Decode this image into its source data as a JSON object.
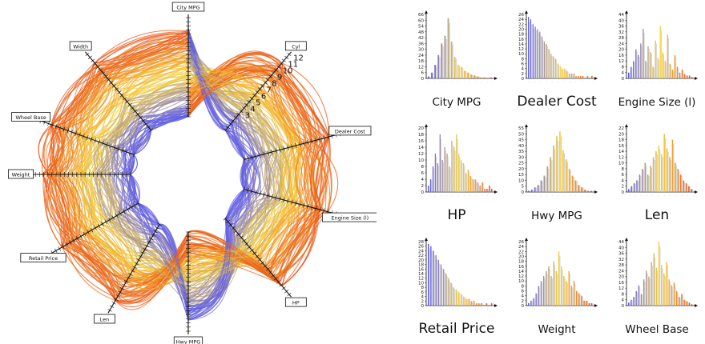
{
  "chart_data": [
    {
      "type": "radial-parallel-coordinates",
      "colors": {
        "low": "#5a5af0",
        "mid": "#f7d23a",
        "high": "#e84e18"
      },
      "axes": [
        {
          "name": "City MPG",
          "angle": -90,
          "ticks": []
        },
        {
          "name": "Cyl",
          "angle": -50,
          "ticks": [
            "3",
            "4",
            "5",
            "6",
            "7",
            "8",
            "9",
            "10",
            "11",
            "12"
          ]
        },
        {
          "name": "Dealer Cost",
          "angle": -15,
          "ticks": []
        },
        {
          "name": "Engine Size (l)",
          "angle": 15,
          "ticks": []
        },
        {
          "name": "HP",
          "angle": 50,
          "ticks": []
        },
        {
          "name": "Hwy MPG",
          "angle": 90,
          "ticks": []
        },
        {
          "name": "Len",
          "angle": 120,
          "ticks": []
        },
        {
          "name": "Retail Price",
          "angle": 150,
          "ticks": []
        },
        {
          "name": "Weight",
          "angle": 180,
          "ticks": []
        },
        {
          "name": "Width",
          "angle": 230,
          "ticks": []
        },
        {
          "name": "Wheel Base",
          "angle": 200,
          "ticks": []
        }
      ],
      "axis_box_labels": [
        "City MPG",
        "Cyl",
        "Dealer Cost",
        "Engine Size (l)",
        "HP",
        "Hwy MPG",
        "Len",
        "Retail Price",
        "Weight",
        "Width",
        "Wheel Base"
      ]
    },
    {
      "type": "histogram-grid",
      "panels": [
        {
          "title": "City MPG",
          "yticks": [
            "0",
            "6",
            "12",
            "18",
            "24",
            "30",
            "36",
            "42",
            "48",
            "54",
            "60",
            "66"
          ],
          "ymax": 66,
          "values": [
            2,
            6,
            14,
            24,
            36,
            44,
            62,
            38,
            22,
            14,
            12,
            8,
            6,
            4,
            3,
            2,
            1,
            1,
            0,
            1
          ]
        },
        {
          "title": "Dealer Cost",
          "yticks": [
            "0",
            "2",
            "4",
            "6",
            "8",
            "10",
            "12",
            "14",
            "16",
            "18",
            "20",
            "22",
            "24",
            "26"
          ],
          "ymax": 26,
          "values": [
            25,
            24,
            22,
            21,
            20,
            19,
            17,
            15,
            14,
            12,
            10,
            9,
            8,
            6,
            5,
            4,
            4,
            3,
            2,
            2,
            2,
            1,
            1,
            1,
            1,
            0,
            1,
            0,
            1
          ]
        },
        {
          "title": "Engine Size (l)",
          "yticks": [
            "0",
            "4",
            "8",
            "12",
            "16",
            "20",
            "24",
            "28",
            "32",
            "36",
            "40",
            "44"
          ],
          "ymax": 44,
          "values": [
            4,
            8,
            12,
            20,
            16,
            24,
            34,
            12,
            22,
            18,
            8,
            26,
            14,
            36,
            18,
            12,
            30,
            10,
            6,
            16,
            8,
            4,
            6,
            3,
            2,
            2,
            1
          ]
        },
        {
          "title": "HP",
          "yticks": [
            "0",
            "2",
            "4",
            "6",
            "8",
            "10",
            "12",
            "14",
            "16",
            "18",
            "20"
          ],
          "ymax": 20,
          "values": [
            2,
            4,
            8,
            12,
            9,
            18,
            10,
            14,
            12,
            8,
            16,
            14,
            18,
            12,
            10,
            9,
            6,
            7,
            5,
            4,
            4,
            3,
            2,
            3,
            1,
            1,
            2,
            1
          ]
        },
        {
          "title": "Hwy MPG",
          "yticks": [
            "0",
            "5",
            "10",
            "15",
            "20",
            "25",
            "30",
            "35",
            "40",
            "45",
            "50",
            "55"
          ],
          "ymax": 55,
          "values": [
            1,
            2,
            4,
            6,
            10,
            14,
            22,
            30,
            40,
            48,
            52,
            36,
            28,
            20,
            14,
            10,
            6,
            4,
            2,
            1,
            1
          ]
        },
        {
          "title": "Len",
          "yticks": [
            "0",
            "2",
            "4",
            "6",
            "8",
            "10",
            "12",
            "14",
            "16",
            "18",
            "20",
            "22"
          ],
          "ymax": 22,
          "values": [
            1,
            2,
            3,
            4,
            6,
            8,
            10,
            6,
            9,
            12,
            14,
            16,
            13,
            20,
            15,
            12,
            18,
            10,
            8,
            6,
            4,
            3,
            2,
            1
          ]
        },
        {
          "title": "Retail Price",
          "yticks": [
            "0",
            "2",
            "4",
            "6",
            "8",
            "10",
            "12",
            "14",
            "16",
            "18",
            "20",
            "22",
            "24",
            "26",
            "28"
          ],
          "ymax": 28,
          "values": [
            27,
            26,
            24,
            22,
            20,
            18,
            16,
            14,
            12,
            10,
            8,
            7,
            6,
            5,
            4,
            3,
            3,
            2,
            2,
            1,
            1,
            1,
            0,
            1,
            0,
            1
          ]
        },
        {
          "title": "Weight",
          "yticks": [
            "0",
            "2",
            "4",
            "6",
            "8",
            "10",
            "12",
            "14",
            "16",
            "18",
            "20",
            "22",
            "24",
            "26"
          ],
          "ymax": 26,
          "values": [
            1,
            2,
            3,
            5,
            8,
            10,
            12,
            14,
            16,
            12,
            18,
            14,
            22,
            16,
            12,
            10,
            14,
            8,
            10,
            6,
            5,
            4,
            2,
            2,
            1,
            1
          ]
        },
        {
          "title": "Wheel Base",
          "yticks": [
            "0",
            "4",
            "8",
            "12",
            "16",
            "20",
            "24",
            "28",
            "32",
            "36",
            "40",
            "44"
          ],
          "ymax": 44,
          "values": [
            2,
            4,
            6,
            10,
            14,
            8,
            18,
            24,
            20,
            30,
            36,
            26,
            44,
            28,
            22,
            30,
            18,
            14,
            16,
            10,
            6,
            8,
            4,
            3,
            2,
            1
          ]
        }
      ]
    }
  ]
}
